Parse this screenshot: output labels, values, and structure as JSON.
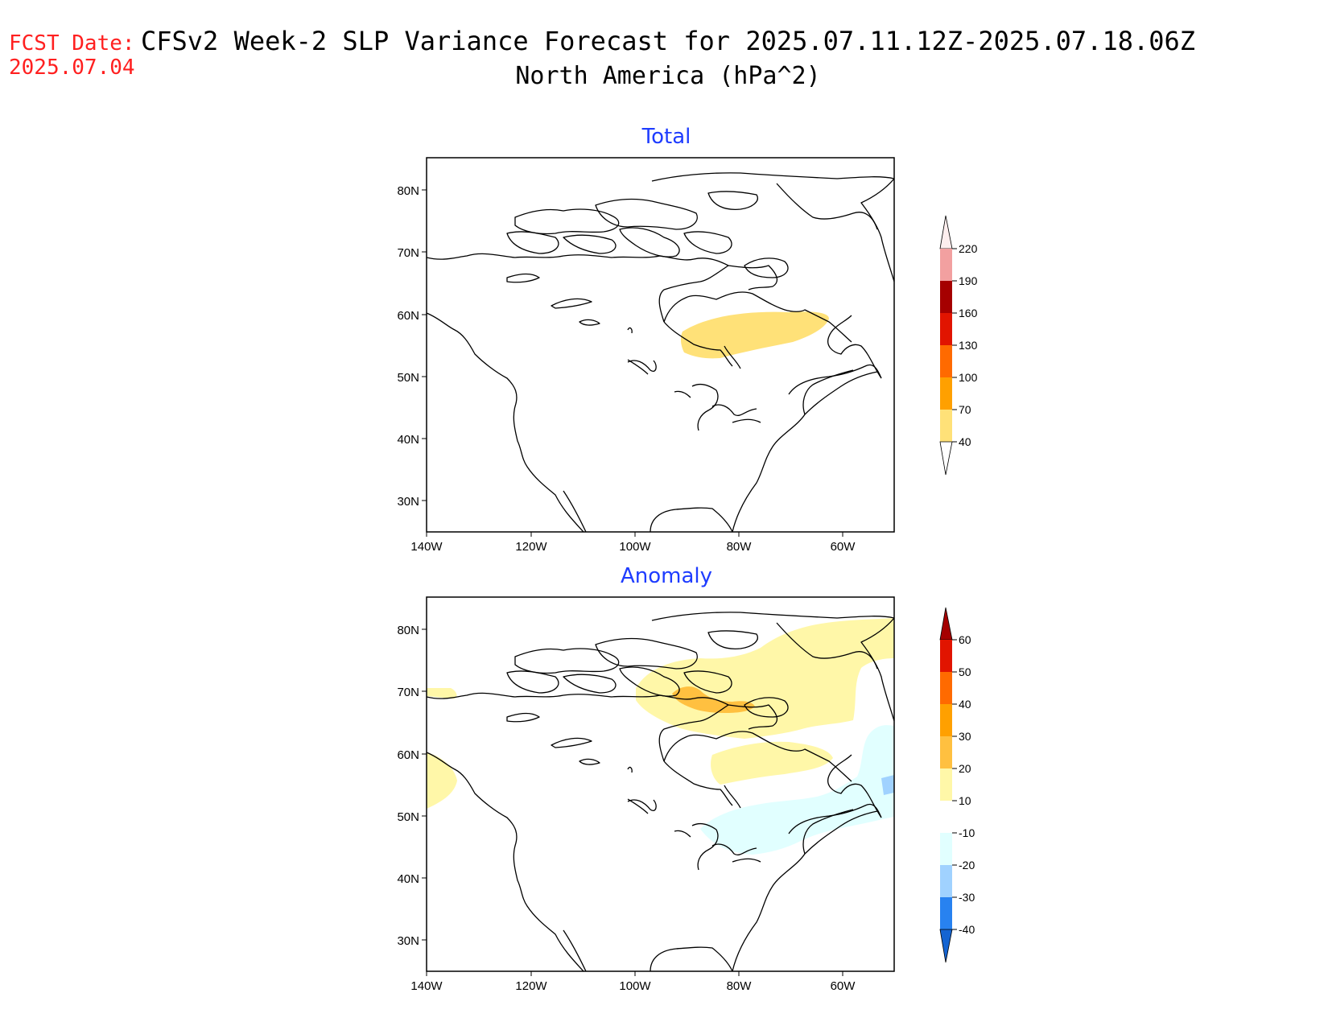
{
  "header": {
    "fcst_label": "FCST Date:",
    "fcst_date": "2025.07.04",
    "title_line1": "CFSv2 Week-2 SLP Variance Forecast for 2025.07.11.12Z-2025.07.18.06Z",
    "title_line2": "North America (hPa^2)"
  },
  "axes": {
    "lat_labels": [
      "80N",
      "70N",
      "60N",
      "50N",
      "40N",
      "30N"
    ],
    "lon_labels": [
      "140W",
      "120W",
      "100W",
      "80W",
      "60W"
    ]
  },
  "panels": [
    {
      "title": "Total",
      "colorbar": {
        "labels": [
          "220",
          "190",
          "160",
          "130",
          "100",
          "70",
          "40"
        ],
        "colors": [
          "#fadcdc",
          "#f2a0a0",
          "#a50000",
          "#e11400",
          "#ff6a00",
          "#ffa000",
          "#ffe178"
        ]
      }
    },
    {
      "title": "Anomaly",
      "colorbar": {
        "labels": [
          "60",
          "50",
          "40",
          "30",
          "20",
          "10",
          "-10",
          "-20",
          "-30",
          "-40"
        ],
        "colors": [
          "#a50000",
          "#e11400",
          "#ff6a00",
          "#ffa000",
          "#ffc040",
          "#fff7a8",
          "#ffffff",
          "#e1ffff",
          "#a0d2ff",
          "#2882f0",
          "#1464d2"
        ]
      }
    }
  ],
  "colors": {
    "fcst": "#ff2020",
    "panel_title": "#1e3cff"
  }
}
